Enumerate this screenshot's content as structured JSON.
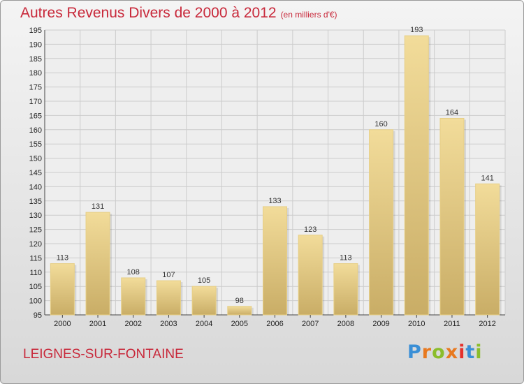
{
  "header": {
    "title": "Autres Revenus Divers de 2000 à 2012",
    "unit": "(en milliers d'€)"
  },
  "footer": {
    "commune": "LEIGNES-SUR-FONTAINE",
    "logo_text": "Proxiti",
    "logo_colors": [
      "#3a8fd6",
      "#e8791f",
      "#8bbd2b",
      "#e8791f",
      "#e5322d",
      "#3a8fd6",
      "#8bbd2b"
    ]
  },
  "colors": {
    "title": "#c8283a",
    "bar_light": "#f2dc9a",
    "bar_dark": "#c9ad66",
    "plot_bg": "#eeeeee",
    "grid": "#cccccc"
  },
  "chart_data": {
    "type": "bar",
    "categories": [
      "2000",
      "2001",
      "2002",
      "2003",
      "2004",
      "2005",
      "2006",
      "2007",
      "2008",
      "2009",
      "2010",
      "2011",
      "2012"
    ],
    "values": [
      113,
      131,
      108,
      107,
      105,
      98,
      133,
      123,
      113,
      160,
      193,
      164,
      141
    ],
    "title": "Autres Revenus Divers de 2000 à 2012",
    "xlabel": "",
    "ylabel": "",
    "ylim": [
      95,
      195
    ],
    "yticks": [
      95,
      100,
      105,
      110,
      115,
      120,
      125,
      130,
      135,
      140,
      145,
      150,
      155,
      160,
      165,
      170,
      175,
      180,
      185,
      190,
      195
    ],
    "grid": true,
    "legend": "none"
  }
}
